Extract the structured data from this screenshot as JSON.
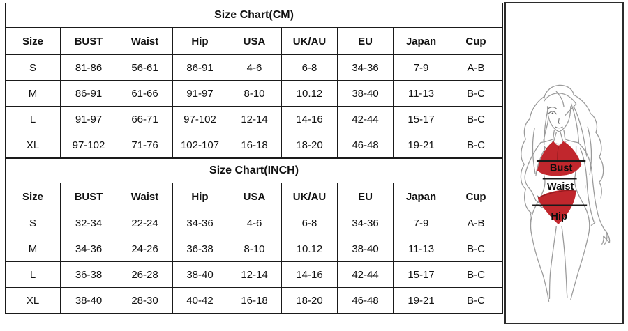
{
  "tables": [
    {
      "title": "Size Chart(CM)",
      "columns": [
        "Size",
        "BUST",
        "Waist",
        "Hip",
        "USA",
        "UK/AU",
        "EU",
        "Japan",
        "Cup"
      ],
      "rows": [
        [
          "S",
          "81-86",
          "56-61",
          "86-91",
          "4-6",
          "6-8",
          "34-36",
          "7-9",
          "A-B"
        ],
        [
          "M",
          "86-91",
          "61-66",
          "91-97",
          "8-10",
          "10.12",
          "38-40",
          "11-13",
          "B-C"
        ],
        [
          "L",
          "91-97",
          "66-71",
          "97-102",
          "12-14",
          "14-16",
          "42-44",
          "15-17",
          "B-C"
        ],
        [
          "XL",
          "97-102",
          "71-76",
          "102-107",
          "16-18",
          "18-20",
          "46-48",
          "19-21",
          "B-C"
        ]
      ]
    },
    {
      "title": "Size Chart(INCH)",
      "columns": [
        "Size",
        "BUST",
        "Waist",
        "Hip",
        "USA",
        "UK/AU",
        "EU",
        "Japan",
        "Cup"
      ],
      "rows": [
        [
          "S",
          "32-34",
          "22-24",
          "34-36",
          "4-6",
          "6-8",
          "34-36",
          "7-9",
          "A-B"
        ],
        [
          "M",
          "34-36",
          "24-26",
          "36-38",
          "8-10",
          "10.12",
          "38-40",
          "11-13",
          "B-C"
        ],
        [
          "L",
          "36-38",
          "26-28",
          "38-40",
          "12-14",
          "14-16",
          "42-44",
          "15-17",
          "B-C"
        ],
        [
          "XL",
          "38-40",
          "28-30",
          "40-42",
          "16-18",
          "18-20",
          "46-48",
          "19-21",
          "B-C"
        ]
      ]
    }
  ],
  "figure": {
    "bust_label": "Bust",
    "waist_label": "Waist",
    "hip_label": "Hip",
    "colors": {
      "bikini_red": "#C1272D",
      "sketch_line": "#9a9a9a",
      "measure_line": "#1a1a1a",
      "table_border": "#1a1a1a"
    }
  }
}
